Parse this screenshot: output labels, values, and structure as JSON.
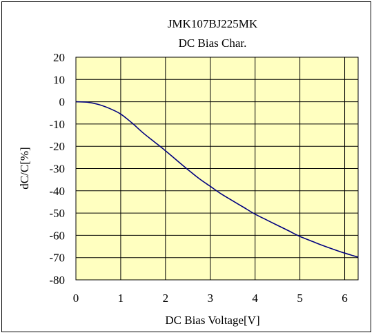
{
  "chart_data": {
    "type": "line",
    "title": "JMK107BJ225MK",
    "subtitle": "DC Bias Char.",
    "xlabel": "DC Bias Voltage[V]",
    "ylabel": "dC/C[%]",
    "xlim": [
      0,
      6.3
    ],
    "ylim": [
      -80,
      20
    ],
    "xticks": [
      0,
      1,
      2,
      3,
      4,
      5,
      6
    ],
    "yticks": [
      20,
      10,
      0,
      -10,
      -20,
      -30,
      -40,
      -50,
      -60,
      -70,
      -80
    ],
    "grid": true,
    "legend": "none",
    "colors": {
      "plot_bg": "#ffffc0",
      "line": "#00007f",
      "grid": "#000000"
    },
    "series": [
      {
        "x": [
          0,
          0.25,
          0.5,
          0.75,
          1.0,
          1.25,
          1.5,
          1.75,
          2.0,
          2.25,
          2.5,
          2.75,
          3.0,
          3.25,
          3.5,
          3.75,
          4.0,
          4.25,
          4.5,
          4.75,
          5.0,
          5.25,
          5.5,
          5.75,
          6.0,
          6.3
        ],
        "y": [
          0,
          -0.2,
          -1.2,
          -3.0,
          -5.5,
          -9.5,
          -14,
          -18,
          -22,
          -26.3,
          -30.5,
          -34.5,
          -38,
          -41.5,
          -44.5,
          -47.5,
          -50.5,
          -53,
          -55.5,
          -58,
          -60.5,
          -62.5,
          -64.5,
          -66.3,
          -68,
          -69.8
        ]
      }
    ]
  }
}
